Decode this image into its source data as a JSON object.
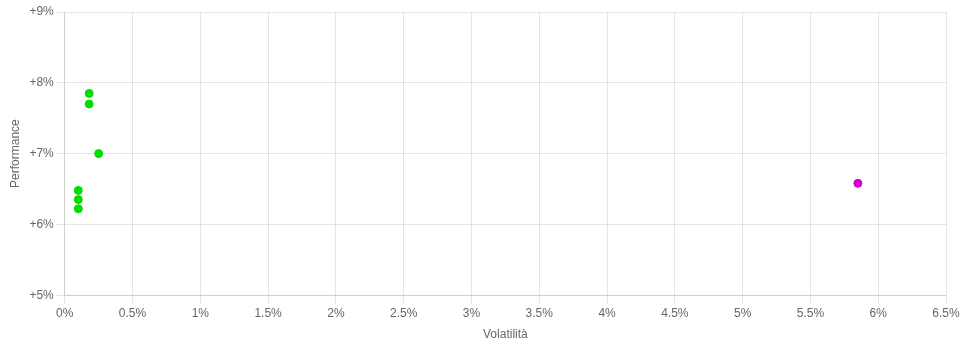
{
  "chart_data": {
    "type": "scatter",
    "xlabel": "Volatilità",
    "ylabel": "Performance",
    "series": [
      {
        "color": "#00dd00",
        "x": [
          0.0018,
          0.0018,
          0.0025,
          0.001,
          0.001,
          0.001
        ],
        "values": [
          0.0785,
          0.077,
          0.07,
          0.0648,
          0.0635,
          0.0622
        ]
      },
      {
        "color": "#cc00cc",
        "x": [
          0.0585
        ],
        "values": [
          0.0658
        ]
      }
    ],
    "xlim": [
      0,
      0.065
    ],
    "ylim": [
      0.05,
      0.09
    ],
    "xticks": [
      {
        "value": 0.0,
        "label": "0%"
      },
      {
        "value": 0.005,
        "label": "0.5%"
      },
      {
        "value": 0.01,
        "label": "1%"
      },
      {
        "value": 0.015,
        "label": "1.5%"
      },
      {
        "value": 0.02,
        "label": "2%"
      },
      {
        "value": 0.025,
        "label": "2.5%"
      },
      {
        "value": 0.03,
        "label": "3%"
      },
      {
        "value": 0.035,
        "label": "3.5%"
      },
      {
        "value": 0.04,
        "label": "4%"
      },
      {
        "value": 0.045,
        "label": "4.5%"
      },
      {
        "value": 0.05,
        "label": "5%"
      },
      {
        "value": 0.055,
        "label": "5.5%"
      },
      {
        "value": 0.06,
        "label": "6%"
      },
      {
        "value": 0.065,
        "label": "6.5%"
      }
    ],
    "yticks": [
      {
        "value": 0.05,
        "label": "+5%"
      },
      {
        "value": 0.06,
        "label": "+6%"
      },
      {
        "value": 0.07,
        "label": "+7%"
      },
      {
        "value": 0.08,
        "label": "+8%"
      },
      {
        "value": 0.09,
        "label": "+9%"
      }
    ],
    "grid": true
  }
}
